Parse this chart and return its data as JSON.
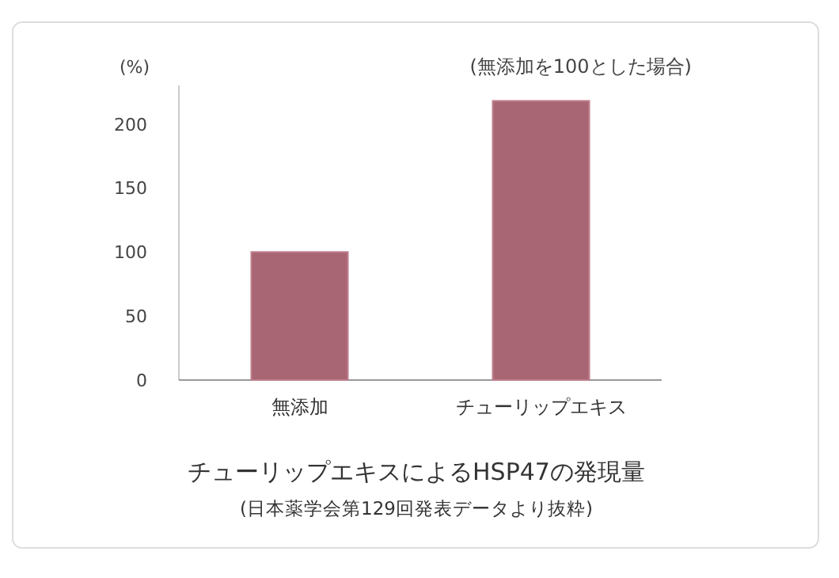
{
  "chart_data": {
    "type": "bar",
    "title": "チューリップエキスによるHSP47の発現量",
    "ylabel": "(%)",
    "annotations": [
      "(無添加を100とした場合)",
      "(日本薬学会第129回発表データより抜粋)"
    ],
    "categories": [
      "無添加",
      "チューリップエキス"
    ],
    "values": [
      100,
      218
    ],
    "color": "#a86674",
    "ylim": [
      0,
      230
    ],
    "yticks": [
      0,
      50,
      100,
      150,
      200
    ],
    "grid": false
  }
}
